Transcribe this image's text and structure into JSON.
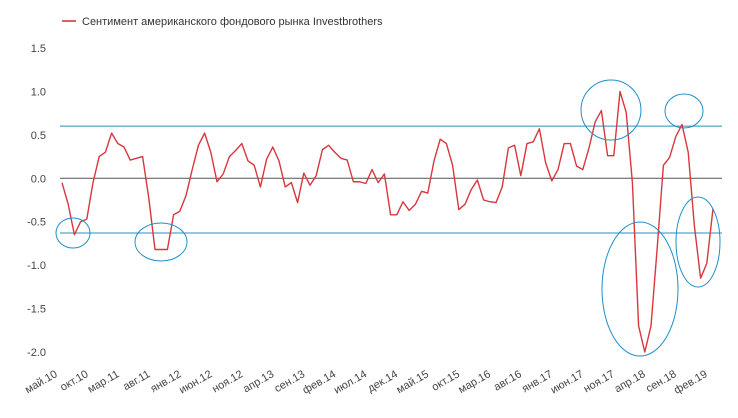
{
  "chart_data": {
    "type": "line",
    "title": "",
    "xlabel": "",
    "ylabel": "",
    "legend": {
      "position": "top-left",
      "entries": [
        "Сентимент американского фондового рынка Investbrothers"
      ]
    },
    "ylim": [
      -2.0,
      1.5
    ],
    "y_ticks": [
      "1.5",
      "1.0",
      "0.5",
      "0.0",
      "-0.5",
      "-1.0",
      "-1.5",
      "-2.0"
    ],
    "x_tick_labels": [
      "май.10",
      "окт.10",
      "мар.11",
      "авг.11",
      "янв.12",
      "июн.12",
      "ноя.12",
      "апр.13",
      "сен.13",
      "фев.14",
      "июл.14",
      "дек.14",
      "май.15",
      "окт.15",
      "мар.16",
      "авг.16",
      "янв.17",
      "июн.17",
      "ноя.17",
      "апр.18",
      "сен.18",
      "фев.19"
    ],
    "x_start": "май.10",
    "x_end": "фев.19",
    "reference_lines": [
      0.6,
      -0.63,
      0.0
    ],
    "colors": {
      "series": "#d9363e",
      "reference": "#2a8fb8",
      "zero": "#555555",
      "highlight": "#1f8fc8"
    },
    "series": [
      {
        "name": "Сентимент американского фондового рынка Investbrothers",
        "values": [
          -0.05,
          -0.3,
          -0.65,
          -0.5,
          -0.47,
          -0.05,
          0.25,
          0.3,
          0.52,
          0.4,
          0.36,
          0.21,
          0.23,
          0.25,
          -0.23,
          -0.82,
          -0.82,
          -0.82,
          -0.42,
          -0.38,
          -0.2,
          0.1,
          0.38,
          0.52,
          0.3,
          -0.04,
          0.05,
          0.25,
          0.32,
          0.4,
          0.2,
          0.15,
          -0.1,
          0.22,
          0.36,
          0.2,
          -0.1,
          -0.05,
          -0.28,
          0.06,
          -0.08,
          0.03,
          0.33,
          0.38,
          0.3,
          0.23,
          0.21,
          -0.04,
          -0.04,
          -0.06,
          0.1,
          -0.05,
          0.05,
          -0.42,
          -0.42,
          -0.27,
          -0.37,
          -0.3,
          -0.15,
          -0.17,
          0.2,
          0.45,
          0.4,
          0.15,
          -0.36,
          -0.3,
          -0.13,
          -0.02,
          -0.25,
          -0.27,
          -0.28,
          -0.1,
          0.35,
          0.38,
          0.03,
          0.4,
          0.42,
          0.57,
          0.18,
          -0.03,
          0.1,
          0.4,
          0.4,
          0.14,
          0.1,
          0.35,
          0.65,
          0.78,
          0.26,
          0.26,
          1.0,
          0.76,
          -0.05,
          -1.7,
          -2.0,
          -1.7,
          -0.8,
          0.15,
          0.24,
          0.48,
          0.62,
          0.3,
          -0.55,
          -1.15,
          -0.98,
          -0.35
        ]
      }
    ]
  }
}
